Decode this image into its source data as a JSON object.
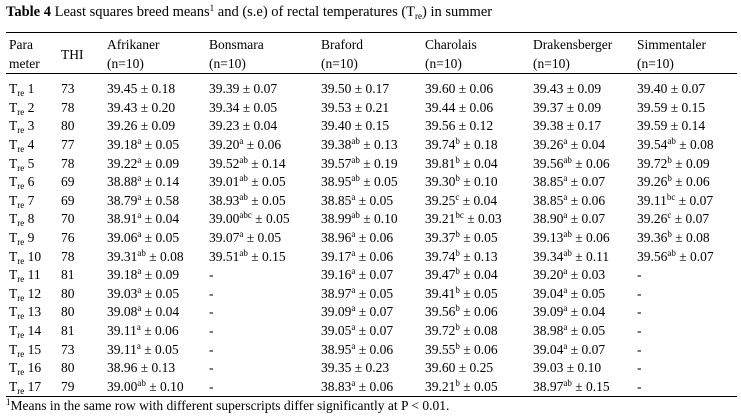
{
  "title": {
    "label": "Table 4",
    "text": " Least squares breed means",
    "sup": "1",
    "text2": " and (s.e) of rectal temperatures (T",
    "sub": "re",
    "text3": ") in summer"
  },
  "table": {
    "header": [
      [
        "Para",
        "meter"
      ],
      [
        "THI"
      ],
      [
        "Afrikaner",
        "(n=10)"
      ],
      [
        "Bonsmara",
        "(n=10)"
      ],
      [
        "Braford",
        "(n=10)"
      ],
      [
        "Charolais",
        "(n=10)"
      ],
      [
        "Drakensberger",
        "(n=10)"
      ],
      [
        "Simmentaler",
        "(n=10)"
      ]
    ],
    "rows": [
      {
        "param": [
          "T",
          "re",
          " 1"
        ],
        "thi": "73",
        "cells": [
          {
            "mean": "39.45",
            "se": " ± 0.18"
          },
          {
            "mean": "39.39",
            "se": " ± 0.07"
          },
          {
            "mean": "39.50",
            "se": " ± 0.17"
          },
          {
            "mean": "39.60",
            "se": " ± 0.06"
          },
          {
            "mean": "39.43",
            "se": " ± 0.09"
          },
          {
            "mean": "39.40",
            "se": " ± 0.07"
          }
        ]
      },
      {
        "param": [
          "T",
          "re",
          " 2"
        ],
        "thi": "78",
        "cells": [
          {
            "mean": "39.43",
            "se": " ± 0.20"
          },
          {
            "mean": "39.34",
            "se": " ± 0.05"
          },
          {
            "mean": "39.53",
            "se": " ± 0.21"
          },
          {
            "mean": "39.44",
            "se": " ± 0.06"
          },
          {
            "mean": "39.37",
            "se": " ± 0.09"
          },
          {
            "mean": "39.59",
            "se": " ± 0.15"
          }
        ]
      },
      {
        "param": [
          "T",
          "re",
          " 3"
        ],
        "thi": "80",
        "cells": [
          {
            "mean": "39.26",
            "se": " ± 0.09"
          },
          {
            "mean": "39.23",
            "se": " ± 0.04"
          },
          {
            "mean": "39.40",
            "se": " ± 0.15"
          },
          {
            "mean": "39.56",
            "se": " ± 0.12"
          },
          {
            "mean": "39.38",
            "se": " ± 0.17"
          },
          {
            "mean": "39.59",
            "se": " ± 0.14"
          }
        ]
      },
      {
        "param": [
          "T",
          "re",
          " 4"
        ],
        "thi": "77",
        "cells": [
          {
            "mean": "39.18",
            "sup": "a",
            "se": " ± 0.05"
          },
          {
            "mean": "39.20",
            "sup": "a",
            "se": " ± 0.06"
          },
          {
            "mean": "39.38",
            "sup": "ab",
            "se": " ± 0.13"
          },
          {
            "mean": "39.74",
            "sup": "b",
            "se": " ± 0.18"
          },
          {
            "mean": "39.26",
            "sup": "a",
            "se": " ± 0.04"
          },
          {
            "mean": "39.54",
            "sup": "ab",
            "se": " ± 0.08"
          }
        ]
      },
      {
        "param": [
          "T",
          "re",
          " 5"
        ],
        "thi": "78",
        "cells": [
          {
            "mean": "39.22",
            "sup": "a",
            "se": " ± 0.09"
          },
          {
            "mean": "39.52",
            "sup": "ab",
            "se": " ± 0.14"
          },
          {
            "mean": "39.57",
            "sup": "ab",
            "se": " ± 0.19"
          },
          {
            "mean": "39.81",
            "sup": "b",
            "se": " ± 0.04"
          },
          {
            "mean": "39.56",
            "sup": "ab",
            "se": " ± 0.06"
          },
          {
            "mean": "39.72",
            "sup": "b",
            "se": " ± 0.09"
          }
        ]
      },
      {
        "param": [
          "T",
          "re",
          " 6"
        ],
        "thi": "69",
        "cells": [
          {
            "mean": "38.88",
            "sup": "a",
            "se": " ± 0.14"
          },
          {
            "mean": "39.01",
            "sup": "ab",
            "se": " ± 0.05"
          },
          {
            "mean": "38.95",
            "sup": "ab",
            "se": " ± 0.05"
          },
          {
            "mean": "39.30",
            "sup": "b",
            "se": " ± 0.10"
          },
          {
            "mean": "38.85",
            "sup": "a",
            "se": " ± 0.07"
          },
          {
            "mean": "39.26",
            "sup": "b",
            "se": " ± 0.06"
          }
        ]
      },
      {
        "param": [
          "T",
          "re",
          " 7"
        ],
        "thi": "69",
        "cells": [
          {
            "mean": "38.79",
            "sup": "a",
            "se": " ± 0.58"
          },
          {
            "mean": "38.93",
            "sup": "ab",
            "se": " ± 0.05"
          },
          {
            "mean": "38.85",
            "sup": "a",
            "se": " ± 0.05"
          },
          {
            "mean": "39.25",
            "sup": "c",
            "se": " ± 0.04"
          },
          {
            "mean": "38.85",
            "sup": "a",
            "se": " ± 0.06"
          },
          {
            "mean": "39.11",
            "sup": "bc",
            "se": " ± 0.07"
          }
        ]
      },
      {
        "param": [
          "T",
          "re",
          " 8"
        ],
        "thi": "70",
        "cells": [
          {
            "mean": "38.91",
            "sup": "a",
            "se": " ± 0.04"
          },
          {
            "mean": "39.00",
            "sup": "abc",
            "se": " ± 0.05"
          },
          {
            "mean": "38.99",
            "sup": "ab",
            "se": " ± 0.10"
          },
          {
            "mean": "39.21",
            "sup": "bc",
            "se": " ± 0.03"
          },
          {
            "mean": "38.90",
            "sup": "a",
            "se": " ± 0.07"
          },
          {
            "mean": "39.26",
            "sup": "c",
            "se": " ± 0.07"
          }
        ]
      },
      {
        "param": [
          "T",
          "re",
          " 9"
        ],
        "thi": "76",
        "cells": [
          {
            "mean": "39.06",
            "sup": "a",
            "se": " ± 0.05"
          },
          {
            "mean": "39.07",
            "sup": "a",
            "se": " ± 0.05"
          },
          {
            "mean": "38.96",
            "sup": "a",
            "se": " ± 0.06"
          },
          {
            "mean": "39.37",
            "sup": "b",
            "se": " ± 0.05"
          },
          {
            "mean": "39.13",
            "sup": "ab",
            "se": " ± 0.06"
          },
          {
            "mean": "39.36",
            "sup": "b",
            "se": " ± 0.08"
          }
        ]
      },
      {
        "param": [
          "T",
          "re",
          " 10"
        ],
        "thi": "78",
        "cells": [
          {
            "mean": "39.31",
            "sup": "ab",
            "se": " ± 0.08"
          },
          {
            "mean": "39.51",
            "sup": "ab",
            "se": " ± 0.15"
          },
          {
            "mean": "39.17",
            "sup": "a",
            "se": " ± 0.06"
          },
          {
            "mean": "39.74",
            "sup": "b",
            "se": " ± 0.13"
          },
          {
            "mean": "39.34",
            "sup": "ab",
            "se": " ± 0.11"
          },
          {
            "mean": "39.56",
            "sup": "ab",
            "se": " ± 0.07"
          }
        ]
      },
      {
        "param": [
          "T",
          "re",
          " 11"
        ],
        "thi": "81",
        "cells": [
          {
            "mean": "39.18",
            "sup": "a",
            "se": " ± 0.09"
          },
          {
            "mean": "-"
          },
          {
            "mean": "39.16",
            "sup": "a",
            "se": " ± 0.07"
          },
          {
            "mean": "39.47",
            "sup": "b",
            "se": " ± 0.04"
          },
          {
            "mean": "39.20",
            "sup": "a",
            "se": " ± 0.03"
          },
          {
            "mean": "-"
          }
        ]
      },
      {
        "param": [
          "T",
          "re",
          " 12"
        ],
        "thi": "80",
        "cells": [
          {
            "mean": "39.03",
            "sup": "a",
            "se": " ± 0.05"
          },
          {
            "mean": "-"
          },
          {
            "mean": "38.97",
            "sup": "a",
            "se": " ± 0.05"
          },
          {
            "mean": "39.41",
            "sup": "b",
            "se": " ± 0.05"
          },
          {
            "mean": "39.04",
            "sup": "a",
            "se": " ± 0.05"
          },
          {
            "mean": "-"
          }
        ]
      },
      {
        "param": [
          "T",
          "re",
          " 13"
        ],
        "thi": "80",
        "cells": [
          {
            "mean": "39.08",
            "sup": "a",
            "se": " ± 0.04"
          },
          {
            "mean": "-"
          },
          {
            "mean": "39.09",
            "sup": "a",
            "se": " ± 0.07"
          },
          {
            "mean": "39.56",
            "sup": "b",
            "se": " ± 0.06"
          },
          {
            "mean": "39.09",
            "sup": "a",
            "se": " ± 0.04"
          },
          {
            "mean": "-"
          }
        ]
      },
      {
        "param": [
          "T",
          "re",
          " 14"
        ],
        "thi": "81",
        "cells": [
          {
            "mean": "39.11",
            "sup": "a",
            "se": " ± 0.06"
          },
          {
            "mean": "-"
          },
          {
            "mean": "39.05",
            "sup": "a",
            "se": " ± 0.07"
          },
          {
            "mean": "39.72",
            "sup": "b",
            "se": " ± 0.08"
          },
          {
            "mean": "38.98",
            "sup": "a",
            "se": " ± 0.05"
          },
          {
            "mean": "-"
          }
        ]
      },
      {
        "param": [
          "T",
          "re",
          " 15"
        ],
        "thi": "73",
        "cells": [
          {
            "mean": "39.11",
            "sup": "a",
            "se": " ± 0.05"
          },
          {
            "mean": "-"
          },
          {
            "mean": "38.95",
            "sup": "a",
            "se": " ± 0.06"
          },
          {
            "mean": "39.55",
            "sup": "b",
            "se": " ± 0.06"
          },
          {
            "mean": "39.04",
            "sup": "a",
            "se": " ± 0.07"
          },
          {
            "mean": "-"
          }
        ]
      },
      {
        "param": [
          "T",
          "re",
          " 16"
        ],
        "thi": "80",
        "cells": [
          {
            "mean": "38.96",
            "se": " ± 0.13"
          },
          {
            "mean": "-"
          },
          {
            "mean": "39.35",
            "se": " ± 0.23"
          },
          {
            "mean": "39.60",
            "se": " ± 0.25"
          },
          {
            "mean": "39.03",
            "se": " ± 0.10"
          },
          {
            "mean": "-"
          }
        ]
      },
      {
        "param": [
          "T",
          "re",
          " 17"
        ],
        "thi": "79",
        "cells": [
          {
            "mean": "39.00",
            "sup": "ab",
            "se": " ± 0.10"
          },
          {
            "mean": "-"
          },
          {
            "mean": "38.83",
            "sup": "a",
            "se": " ± 0.06"
          },
          {
            "mean": "39.21",
            "sup": "b",
            "se": " ± 0.05"
          },
          {
            "mean": "38.97",
            "sup": "ab",
            "se": " ± 0.15"
          },
          {
            "mean": "-"
          }
        ]
      }
    ]
  },
  "footnote": {
    "sup": "1",
    "text": "Means in the same row with different superscripts differ significantly at P < 0.01."
  }
}
